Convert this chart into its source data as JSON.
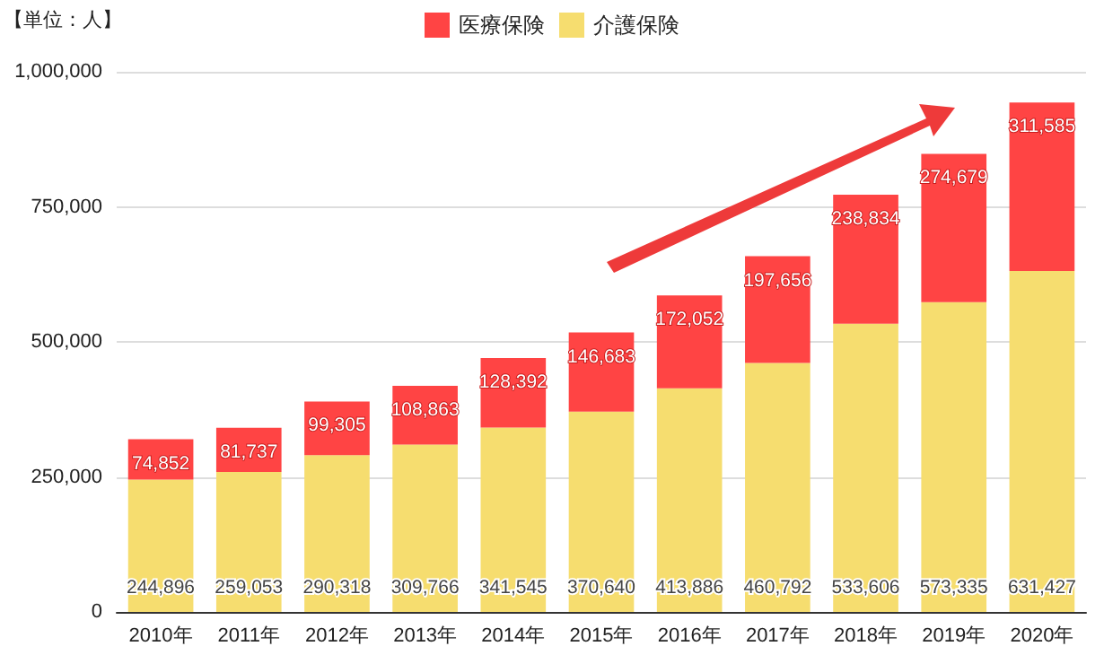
{
  "chart_data": {
    "type": "bar",
    "stacked": true,
    "annotations": [
      "【単位：人】"
    ],
    "categories": [
      "2010年",
      "2011年",
      "2012年",
      "2013年",
      "2014年",
      "2015年",
      "2016年",
      "2017年",
      "2018年",
      "2019年",
      "2020年"
    ],
    "series": [
      {
        "name": "介護保険",
        "color": "#f6dd6f",
        "values": [
          244896,
          259053,
          290318,
          309766,
          341545,
          370640,
          413886,
          460792,
          533606,
          573335,
          631427
        ],
        "value_labels": [
          "244,896",
          "259,053",
          "290,318",
          "309,766",
          "341,545",
          "370,640",
          "413,886",
          "460,792",
          "533,606",
          "573,335",
          "631,427"
        ]
      },
      {
        "name": "医療保険",
        "color": "#ff4444",
        "values": [
          74852,
          81737,
          99305,
          108863,
          128392,
          146683,
          172052,
          197656,
          238834,
          274679,
          311585
        ],
        "value_labels": [
          "74,852",
          "81,737",
          "99,305",
          "108,863",
          "128,392",
          "146,683",
          "172,052",
          "197,656",
          "238,834",
          "274,679",
          "311,585"
        ]
      }
    ],
    "ylim": [
      0,
      1000000
    ],
    "yticks": [
      0,
      {
        "value": 250000,
        "label": "250,000"
      },
      {
        "value": 500000,
        "label": "500,000"
      },
      {
        "value": 750000,
        "label": "750,000"
      },
      {
        "value": 1000000,
        "label": "1,000,000"
      }
    ],
    "grid": "y",
    "legend": "top"
  }
}
